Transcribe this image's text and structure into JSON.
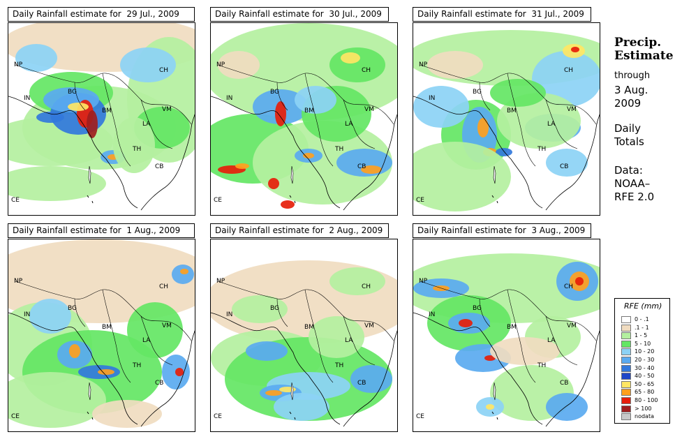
{
  "panels": [
    {
      "title": "Daily Rainfall estimate for  29 Jul., 2009",
      "date": "29 Jul., 2009"
    },
    {
      "title": "Daily Rainfall estimate for  30 Jul., 2009",
      "date": "30 Jul., 2009"
    },
    {
      "title": "Daily Rainfall estimate for  31 Jul., 2009",
      "date": "31 Jul., 2009"
    },
    {
      "title": "Daily Rainfall estimate for  1 Aug., 2009",
      "date": "1 Aug., 2009"
    },
    {
      "title": "Daily Rainfall estimate for  2 Aug., 2009",
      "date": "2 Aug., 2009"
    },
    {
      "title": "Daily Rainfall estimate for  3 Aug., 2009",
      "date": "3 Aug., 2009"
    }
  ],
  "country_labels": [
    "NP",
    "CH",
    "IN",
    "BG",
    "BM",
    "VM",
    "LA",
    "TH",
    "CB",
    "CE"
  ],
  "side": {
    "title_line1": "Precip.",
    "title_line2": "Estimate",
    "through": "through",
    "date_line1": "3 Aug.",
    "date_line2": "2009",
    "totals_line1": "Daily",
    "totals_line2": "Totals",
    "data_line1": "Data:",
    "data_line2": "NOAA–",
    "data_line3": "RFE 2.0"
  },
  "legend": {
    "title": "RFE (mm)",
    "bins": [
      {
        "label": "0 - .1",
        "color": "#ffffff"
      },
      {
        "label": ".1 - 1",
        "color": "#f0dcc0"
      },
      {
        "label": "1 - 5",
        "color": "#b4f0a0"
      },
      {
        "label": "5 - 10",
        "color": "#64e664"
      },
      {
        "label": "10 - 20",
        "color": "#8cd2f5"
      },
      {
        "label": "20 - 30",
        "color": "#5aaaf0"
      },
      {
        "label": "30 - 40",
        "color": "#3278dc"
      },
      {
        "label": "40 - 50",
        "color": "#1e46c8"
      },
      {
        "label": "50 - 65",
        "color": "#ffe664"
      },
      {
        "label": "65 - 80",
        "color": "#ffa01e"
      },
      {
        "label": "80 - 100",
        "color": "#e61e0a"
      },
      {
        "label": "> 100",
        "color": "#a01e1e"
      },
      {
        "label": "nodata",
        "color": "#c8c8c8"
      }
    ]
  }
}
